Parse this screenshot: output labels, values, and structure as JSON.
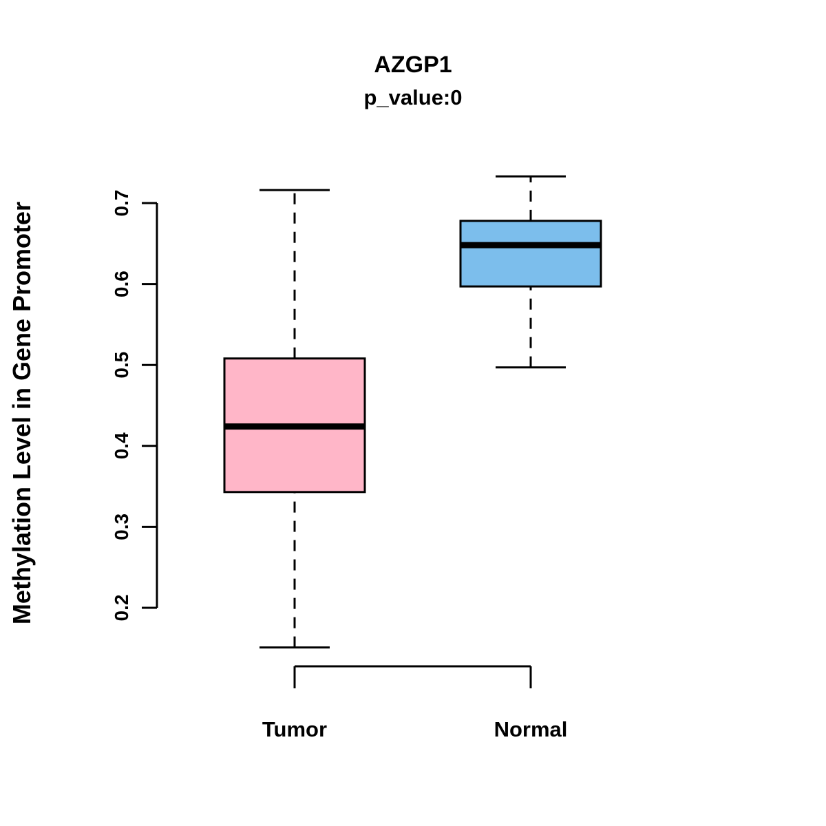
{
  "chart_data": {
    "type": "boxplot",
    "title": "AZGP1",
    "subtitle": "p_value:0",
    "xlabel": "",
    "ylabel": "Methylation Level in Gene Promoter",
    "categories": [
      "Tumor",
      "Normal"
    ],
    "yticks": [
      "0.2",
      "0.3",
      "0.4",
      "0.5",
      "0.6",
      "0.7"
    ],
    "ylim": [
      0.13,
      0.76
    ],
    "grid": false,
    "legend": "none",
    "series": [
      {
        "name": "Tumor",
        "color": "#FFB6C8",
        "whisker_low": 0.151,
        "q1": 0.343,
        "median": 0.424,
        "q3": 0.508,
        "whisker_high": 0.716
      },
      {
        "name": "Normal",
        "color": "#7CBEEC",
        "whisker_low": 0.497,
        "q1": 0.597,
        "median": 0.648,
        "q3": 0.678,
        "whisker_high": 0.733
      }
    ]
  }
}
